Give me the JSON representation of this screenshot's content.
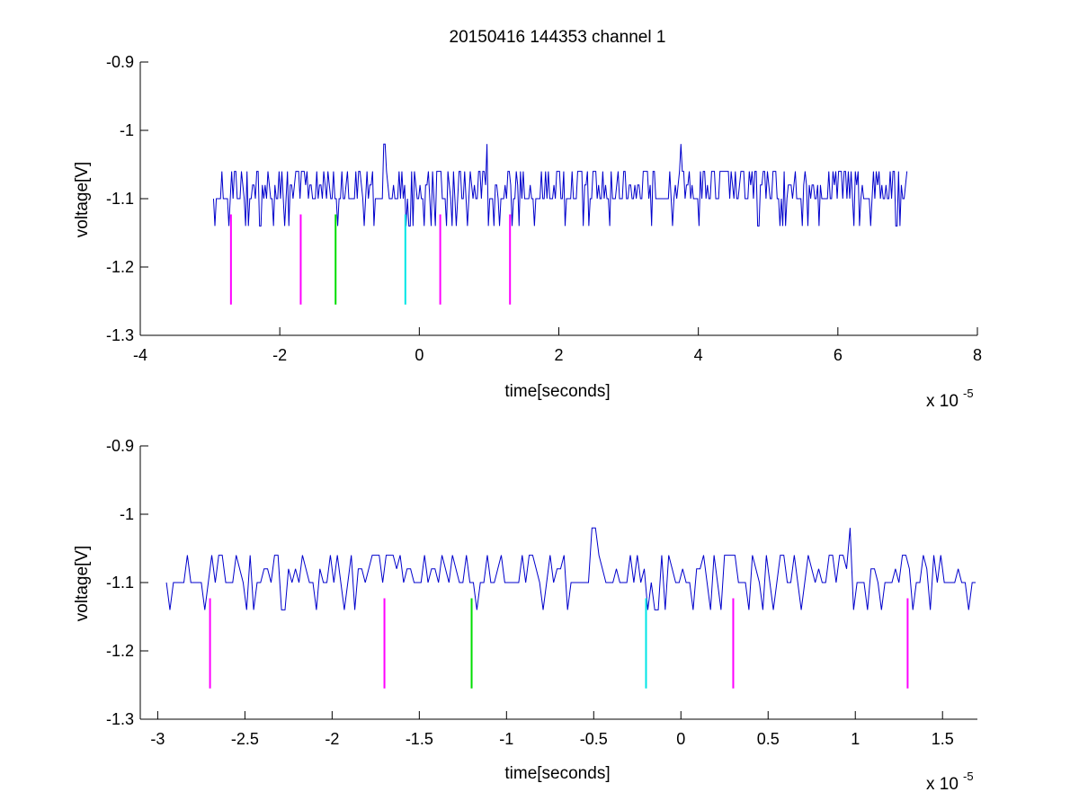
{
  "chart_data": [
    {
      "type": "line",
      "title": "20150416 144353 channel 1",
      "xlabel": "time[seconds]",
      "ylabel": "voltage[V]",
      "x_exponent_label": "x 10",
      "x_exponent": "-5",
      "xlim": [
        -4e-05,
        8e-05
      ],
      "ylim": [
        -1.3,
        -0.9
      ],
      "x_ticks": [
        -4e-05,
        -2e-05,
        0,
        2e-05,
        4e-05,
        6e-05,
        8e-05
      ],
      "x_tick_labels": [
        "-4",
        "-2",
        "0",
        "2",
        "4",
        "6",
        "8"
      ],
      "y_ticks": [
        -1.3,
        -1.2,
        -1.1,
        -1.0,
        -0.9
      ],
      "y_tick_labels": [
        "-1.3",
        "-1.2",
        "-1.1",
        "-1",
        "-0.9"
      ],
      "grid": false,
      "signal": {
        "color": "#0000cc",
        "x_start": -2.95e-05,
        "x_end": 7e-05,
        "baseline": -1.1,
        "high_level": -1.06,
        "low_level": -1.14,
        "peaks": [
          {
            "x": -5e-06,
            "y": -1.02
          },
          {
            "x": 9.7e-06,
            "y": -1.02
          },
          {
            "x": 3.75e-05,
            "y": -1.02
          }
        ]
      },
      "markers": [
        {
          "x": -2.7e-05,
          "color": "#ff00ff",
          "y_top": -1.123,
          "y_bottom": -1.255
        },
        {
          "x": -1.7e-05,
          "color": "#ff00ff",
          "y_top": -1.123,
          "y_bottom": -1.255
        },
        {
          "x": -1.2e-05,
          "color": "#00dd00",
          "y_top": -1.123,
          "y_bottom": -1.255
        },
        {
          "x": -2e-06,
          "color": "#00e5e5",
          "y_top": -1.123,
          "y_bottom": -1.255
        },
        {
          "x": 3e-06,
          "color": "#ff00ff",
          "y_top": -1.123,
          "y_bottom": -1.255
        },
        {
          "x": 1.3e-05,
          "color": "#ff00ff",
          "y_top": -1.123,
          "y_bottom": -1.255
        }
      ]
    },
    {
      "type": "line",
      "title": "",
      "xlabel": "time[seconds]",
      "ylabel": "voltage[V]",
      "x_exponent_label": "x 10",
      "x_exponent": "-5",
      "xlim": [
        -3.1e-05,
        1.7e-05
      ],
      "ylim": [
        -1.3,
        -0.9
      ],
      "x_ticks": [
        -3e-05,
        -2.5e-05,
        -2e-05,
        -1.5e-05,
        -1e-05,
        -5e-06,
        0,
        5e-06,
        1e-05,
        1.5e-05
      ],
      "x_tick_labels": [
        "-3",
        "-2.5",
        "-2",
        "-1.5",
        "-1",
        "-0.5",
        "0",
        "0.5",
        "1",
        "1.5"
      ],
      "y_ticks": [
        -1.3,
        -1.2,
        -1.1,
        -1.0,
        -0.9
      ],
      "y_tick_labels": [
        "-1.3",
        "-1.2",
        "-1.1",
        "-1",
        "-0.9"
      ],
      "grid": false,
      "signal": {
        "color": "#0000cc",
        "x_start": -2.95e-05,
        "x_end": 1.7e-05,
        "baseline": -1.1,
        "high_level": -1.06,
        "low_level": -1.14,
        "peaks": [
          {
            "x": -5e-06,
            "y": -1.02
          },
          {
            "x": 9.7e-06,
            "y": -1.02
          }
        ]
      },
      "markers": [
        {
          "x": -2.7e-05,
          "color": "#ff00ff",
          "y_top": -1.123,
          "y_bottom": -1.255
        },
        {
          "x": -1.7e-05,
          "color": "#ff00ff",
          "y_top": -1.123,
          "y_bottom": -1.255
        },
        {
          "x": -1.2e-05,
          "color": "#00dd00",
          "y_top": -1.123,
          "y_bottom": -1.255
        },
        {
          "x": -2e-06,
          "color": "#00e5e5",
          "y_top": -1.123,
          "y_bottom": -1.255
        },
        {
          "x": 3e-06,
          "color": "#ff00ff",
          "y_top": -1.123,
          "y_bottom": -1.255
        },
        {
          "x": 1.3e-05,
          "color": "#ff00ff",
          "y_top": -1.123,
          "y_bottom": -1.255
        }
      ]
    }
  ]
}
